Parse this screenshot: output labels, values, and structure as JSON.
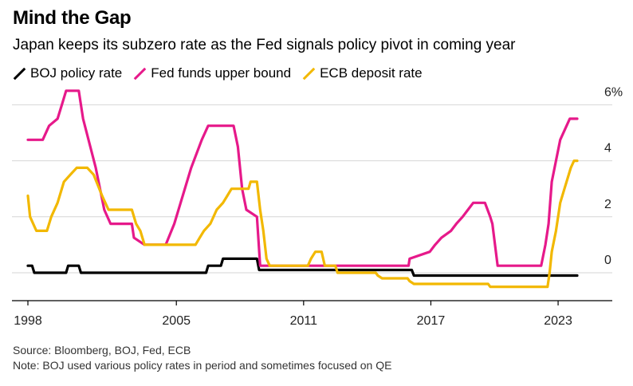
{
  "header": {
    "title": "Mind the Gap",
    "subtitle": "Japan keeps its subzero rate as the Fed signals policy pivot in coming year"
  },
  "footer": {
    "source": "Source: Bloomberg, BOJ, Fed, ECB",
    "note": "Note: BOJ used various policy rates in period and sometimes focused on QE"
  },
  "chart_data": {
    "type": "line",
    "title": "Mind the Gap",
    "subtitle": "Japan keeps its subzero rate as the Fed signals policy pivot in coming year",
    "xlabel": "",
    "ylabel": "",
    "xlim": [
      1998,
      2025.5
    ],
    "ylim": [
      -1,
      6.5
    ],
    "x_ticks": [
      1998,
      2005,
      2011,
      2017,
      2023
    ],
    "x_tick_labels": [
      "1998",
      "2005",
      "2011",
      "2017",
      "2023"
    ],
    "y_ticks": [
      0,
      2,
      4,
      6
    ],
    "y_tick_labels": [
      "0",
      "2",
      "4",
      "6%"
    ],
    "grid": true,
    "legend_position": "top-left",
    "series": [
      {
        "name": "BOJ policy rate",
        "color": "#000000",
        "points": [
          [
            1998,
            0.25
          ],
          [
            1998.2,
            0.25
          ],
          [
            1998.3,
            0
          ],
          [
            1999.8,
            0
          ],
          [
            1999.9,
            0.25
          ],
          [
            2000.4,
            0.25
          ],
          [
            2000.5,
            0
          ],
          [
            2006.4,
            0
          ],
          [
            2006.5,
            0.25
          ],
          [
            2007.1,
            0.25
          ],
          [
            2007.2,
            0.5
          ],
          [
            2008.8,
            0.5
          ],
          [
            2008.9,
            0.1
          ],
          [
            2016.1,
            0.1
          ],
          [
            2016.2,
            -0.1
          ],
          [
            2023.9,
            -0.1
          ]
        ]
      },
      {
        "name": "Fed funds upper bound",
        "color": "#e6198a",
        "points": [
          [
            1998,
            4.75
          ],
          [
            1998.7,
            4.75
          ],
          [
            1999.0,
            5.25
          ],
          [
            1999.4,
            5.5
          ],
          [
            1999.6,
            6.0
          ],
          [
            1999.8,
            6.5
          ],
          [
            2000.4,
            6.5
          ],
          [
            2000.6,
            5.5
          ],
          [
            2001.2,
            3.75
          ],
          [
            2001.6,
            2.25
          ],
          [
            2001.9,
            1.75
          ],
          [
            2002.9,
            1.75
          ],
          [
            2003.0,
            1.25
          ],
          [
            2003.5,
            1.0
          ],
          [
            2004.5,
            1.0
          ],
          [
            2004.9,
            1.75
          ],
          [
            2005.3,
            2.75
          ],
          [
            2005.7,
            3.75
          ],
          [
            2006.2,
            4.75
          ],
          [
            2006.5,
            5.25
          ],
          [
            2007.7,
            5.25
          ],
          [
            2007.9,
            4.5
          ],
          [
            2008.1,
            3.0
          ],
          [
            2008.3,
            2.25
          ],
          [
            2008.8,
            2.0
          ],
          [
            2008.95,
            0.25
          ],
          [
            2015.95,
            0.25
          ],
          [
            2016.0,
            0.5
          ],
          [
            2016.95,
            0.75
          ],
          [
            2017.2,
            1.0
          ],
          [
            2017.5,
            1.25
          ],
          [
            2017.95,
            1.5
          ],
          [
            2018.2,
            1.75
          ],
          [
            2018.5,
            2.0
          ],
          [
            2018.75,
            2.25
          ],
          [
            2019.0,
            2.5
          ],
          [
            2019.55,
            2.5
          ],
          [
            2019.8,
            2.0
          ],
          [
            2019.9,
            1.75
          ],
          [
            2020.15,
            0.25
          ],
          [
            2022.2,
            0.25
          ],
          [
            2022.4,
            1.0
          ],
          [
            2022.55,
            1.75
          ],
          [
            2022.7,
            3.25
          ],
          [
            2022.9,
            4.0
          ],
          [
            2023.1,
            4.75
          ],
          [
            2023.4,
            5.25
          ],
          [
            2023.55,
            5.5
          ],
          [
            2023.9,
            5.5
          ]
        ]
      },
      {
        "name": "ECB deposit rate",
        "color": "#f2b800",
        "points": [
          [
            1998,
            2.75
          ],
          [
            1998.1,
            2.0
          ],
          [
            1998.4,
            1.5
          ],
          [
            1998.9,
            1.5
          ],
          [
            1999.1,
            2.0
          ],
          [
            1999.4,
            2.5
          ],
          [
            1999.7,
            3.25
          ],
          [
            2000.0,
            3.5
          ],
          [
            2000.3,
            3.75
          ],
          [
            2000.8,
            3.75
          ],
          [
            2001.1,
            3.5
          ],
          [
            2001.5,
            2.75
          ],
          [
            2001.8,
            2.25
          ],
          [
            2002.9,
            2.25
          ],
          [
            2003.1,
            1.75
          ],
          [
            2003.3,
            1.5
          ],
          [
            2003.5,
            1.0
          ],
          [
            2005.9,
            1.0
          ],
          [
            2006.1,
            1.25
          ],
          [
            2006.3,
            1.5
          ],
          [
            2006.6,
            1.75
          ],
          [
            2006.9,
            2.25
          ],
          [
            2007.2,
            2.5
          ],
          [
            2007.4,
            2.75
          ],
          [
            2007.6,
            3.0
          ],
          [
            2008.4,
            3.0
          ],
          [
            2008.5,
            3.25
          ],
          [
            2008.8,
            3.25
          ],
          [
            2008.95,
            2.25
          ],
          [
            2009.1,
            1.5
          ],
          [
            2009.25,
            0.5
          ],
          [
            2009.4,
            0.25
          ],
          [
            2011.2,
            0.25
          ],
          [
            2011.35,
            0.5
          ],
          [
            2011.55,
            0.75
          ],
          [
            2011.85,
            0.75
          ],
          [
            2012.0,
            0.25
          ],
          [
            2012.5,
            0.25
          ],
          [
            2012.6,
            0
          ],
          [
            2014.4,
            0
          ],
          [
            2014.5,
            -0.1
          ],
          [
            2014.7,
            -0.2
          ],
          [
            2015.9,
            -0.2
          ],
          [
            2016.0,
            -0.3
          ],
          [
            2016.2,
            -0.4
          ],
          [
            2019.7,
            -0.4
          ],
          [
            2019.8,
            -0.5
          ],
          [
            2022.5,
            -0.5
          ],
          [
            2022.6,
            0
          ],
          [
            2022.7,
            0.75
          ],
          [
            2022.9,
            1.5
          ],
          [
            2023.1,
            2.5
          ],
          [
            2023.3,
            3.0
          ],
          [
            2023.6,
            3.75
          ],
          [
            2023.75,
            4.0
          ],
          [
            2023.9,
            4.0
          ]
        ]
      }
    ]
  }
}
